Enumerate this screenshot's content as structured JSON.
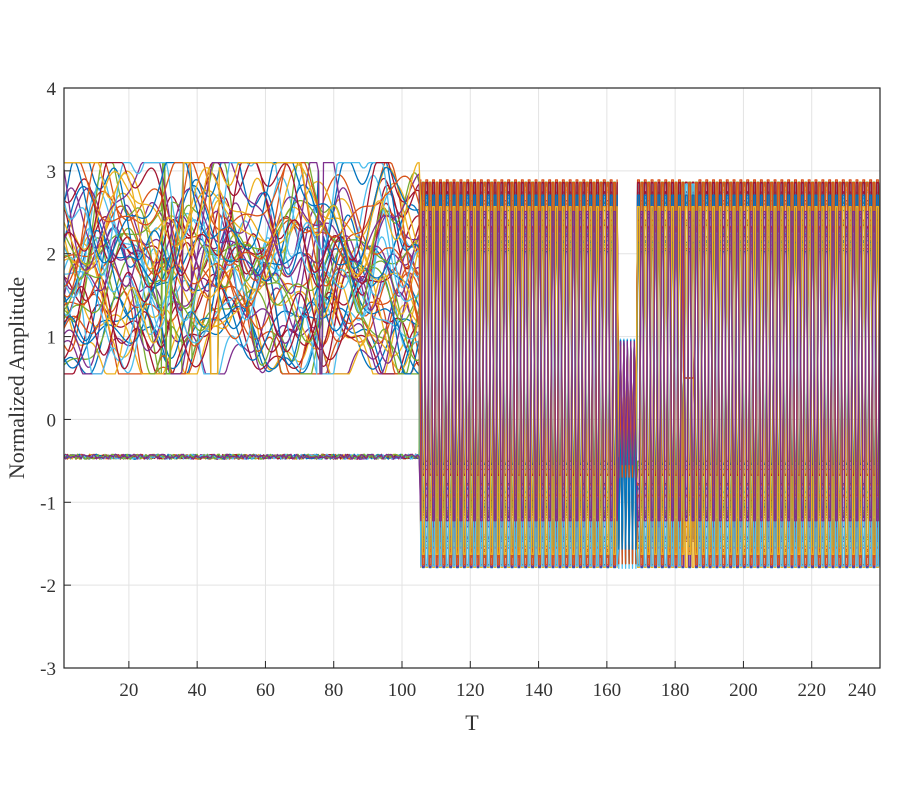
{
  "chart_data": {
    "type": "line",
    "title": "",
    "xlabel": "T",
    "ylabel": "Normalized Amplitude",
    "xlim": [
      1,
      240
    ],
    "ylim": [
      -3,
      4
    ],
    "xticks": [
      20,
      40,
      60,
      80,
      100,
      120,
      140,
      160,
      180,
      200,
      220,
      240
    ],
    "yticks": [
      -3,
      -2,
      -1,
      0,
      1,
      2,
      3,
      4
    ],
    "grid": true,
    "legend": "none",
    "series_count_estimate": 60,
    "palette": [
      "#0072BD",
      "#D95319",
      "#EDB120",
      "#7E2F8E",
      "#77AC30",
      "#4DBEEE",
      "#A2142F"
    ],
    "segments": [
      {
        "x_range": [
          1,
          105
        ],
        "behavior": "smooth traces; upper bundle between 0.6 and 3.1, lower bundle flat near -0.45"
      },
      {
        "x_range": [
          105,
          163
        ],
        "behavior": "periodic oscillation, period about 2 samples; envelope top 2.9, bottom -1.8"
      },
      {
        "x_range": [
          163,
          169
        ],
        "behavior": "dense oscillation bounded between -1.8 and 1.0"
      },
      {
        "x_range": [
          169,
          240
        ],
        "behavior": "periodic oscillation, period about 2 samples; envelope top 2.9, bottom -1.8"
      }
    ],
    "features": [
      {
        "x": 31,
        "y_max": 3.6,
        "y_min": -0.35
      },
      {
        "x": 37,
        "y_max": 3.55
      },
      {
        "x": 45,
        "y_min": 0.3
      },
      {
        "x": 76,
        "y_max": 3.1,
        "y_min": -0.15
      }
    ]
  }
}
